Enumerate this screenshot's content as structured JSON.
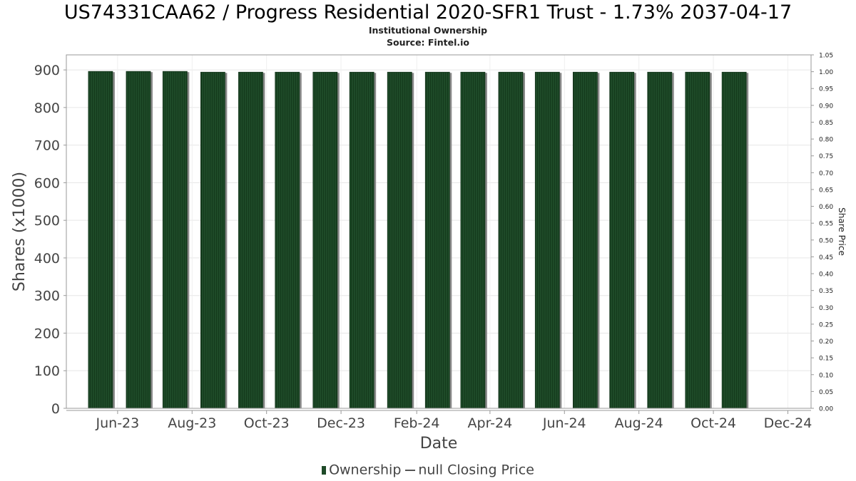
{
  "chart_data": {
    "type": "bar",
    "title": "US74331CAA62 / Progress Residential 2020-SFR1 Trust - 1.73% 2037-04-17",
    "subtitle": "Institutional Ownership",
    "source": "Source: Fintel.io",
    "xlabel": "Date",
    "ylabel": "Shares (x1000)",
    "y2label": "Share Price",
    "ylim": [
      0,
      940
    ],
    "y2lim": [
      0,
      1.05
    ],
    "yticks": [
      0,
      100,
      200,
      300,
      400,
      500,
      600,
      700,
      800,
      900
    ],
    "y2ticks": [
      "0.00",
      "0.05",
      "0.10",
      "0.15",
      "0.20",
      "0.25",
      "0.30",
      "0.35",
      "0.40",
      "0.45",
      "0.50",
      "0.55",
      "0.60",
      "0.65",
      "0.70",
      "0.75",
      "0.80",
      "0.85",
      "0.90",
      "0.95",
      "1.00",
      "1.05"
    ],
    "xlim": [
      "2023-04-20",
      "2024-12-20"
    ],
    "xticks": [
      {
        "label": "Jun-23",
        "date": "2023-06-01"
      },
      {
        "label": "Aug-23",
        "date": "2023-08-01"
      },
      {
        "label": "Oct-23",
        "date": "2023-10-01"
      },
      {
        "label": "Dec-23",
        "date": "2023-12-01"
      },
      {
        "label": "Feb-24",
        "date": "2024-02-01"
      },
      {
        "label": "Apr-24",
        "date": "2024-04-01"
      },
      {
        "label": "Jun-24",
        "date": "2024-06-01"
      },
      {
        "label": "Aug-24",
        "date": "2024-08-01"
      },
      {
        "label": "Oct-24",
        "date": "2024-10-01"
      },
      {
        "label": "Dec-24",
        "date": "2024-12-01"
      }
    ],
    "series": [
      {
        "name": "Ownership",
        "type": "bar",
        "color": "#1e4a28",
        "x": [
          "2023-05-18",
          "2023-06-18",
          "2023-07-18",
          "2023-08-18",
          "2023-09-18",
          "2023-10-18",
          "2023-11-18",
          "2023-12-18",
          "2024-01-18",
          "2024-02-18",
          "2024-03-18",
          "2024-04-18",
          "2024-05-18",
          "2024-06-18",
          "2024-07-18",
          "2024-08-18",
          "2024-09-18",
          "2024-10-18"
        ],
        "values": [
          896,
          896,
          896,
          894,
          894,
          894,
          894,
          894,
          894,
          894,
          894,
          894,
          894,
          894,
          894,
          894,
          894,
          894
        ]
      },
      {
        "name": "null Closing Price",
        "type": "line",
        "color": "#555555",
        "values": []
      }
    ],
    "grid": true,
    "legend_position": "bottom-center"
  }
}
